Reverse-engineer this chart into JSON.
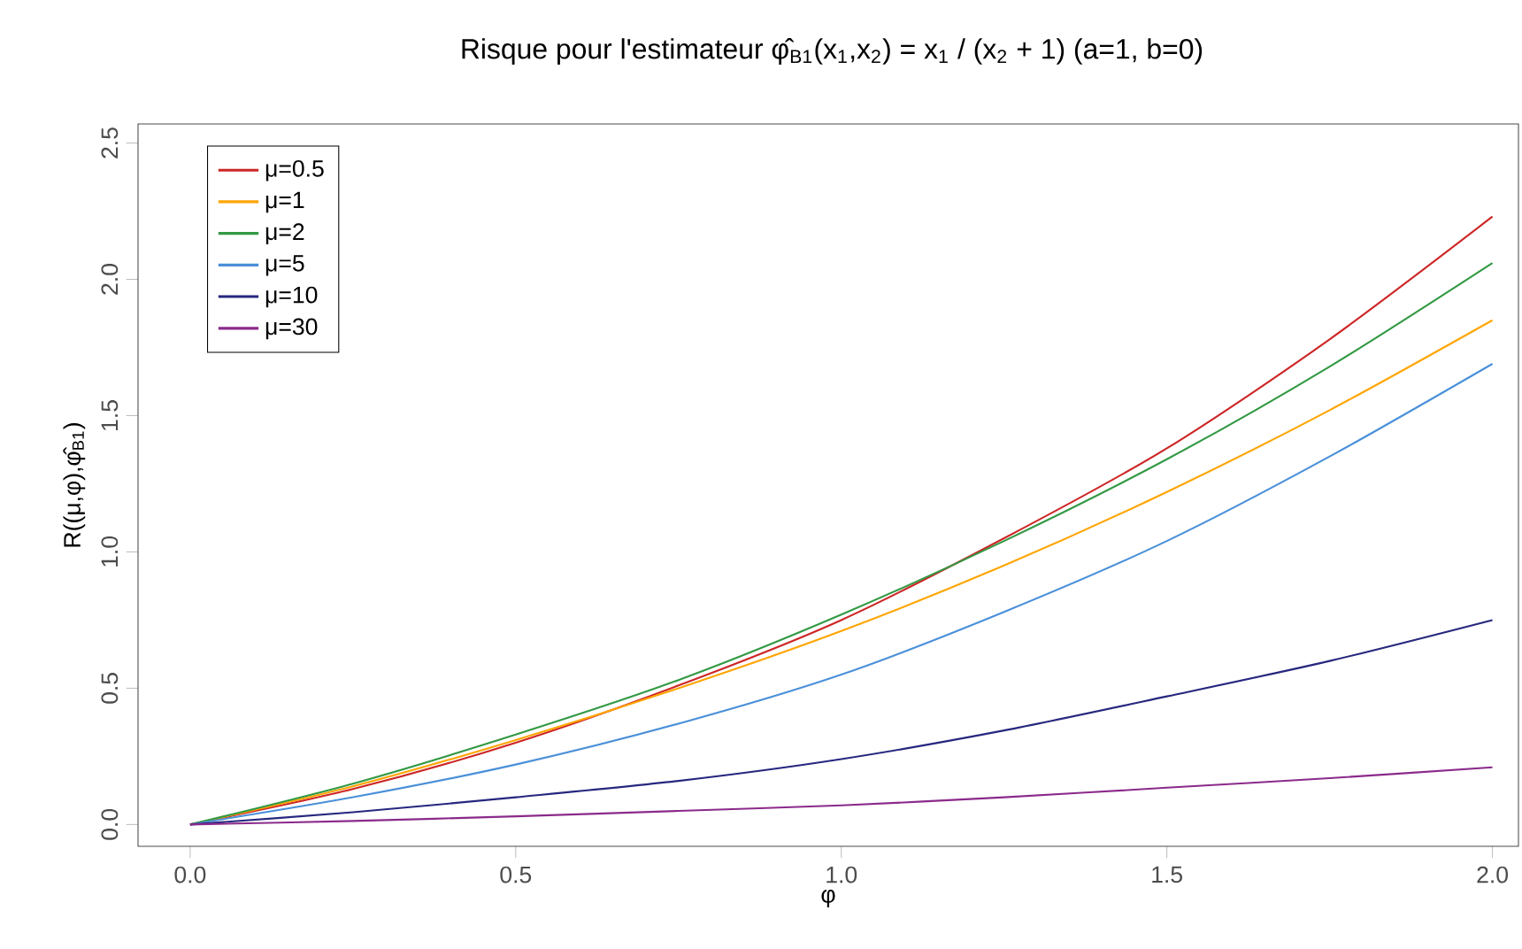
{
  "chart_data": {
    "type": "line",
    "title": "Risque pour l'estimateur φ̂$_{B1}$(x$_{1}$,x$_{2}$) = x$_{1}$ / (x$_{2}$ + 1)  (a=1, b=0)",
    "xlabel": "φ",
    "ylabel": "R((μ,φ),φ̂$_{B1}$)",
    "x": [
      0,
      0.25,
      0.5,
      0.75,
      1.0,
      1.25,
      1.5,
      1.75,
      2.0
    ],
    "series": [
      {
        "name": "μ=0.5",
        "color": "#cd2626",
        "values": [
          0,
          0.13,
          0.3,
          0.51,
          0.75,
          1.05,
          1.38,
          1.78,
          2.23
        ]
      },
      {
        "name": "μ=1",
        "color": "#ffa500",
        "values": [
          0,
          0.14,
          0.31,
          0.5,
          0.71,
          0.95,
          1.22,
          1.52,
          1.85
        ]
      },
      {
        "name": "μ=2",
        "color": "#339944",
        "values": [
          0,
          0.15,
          0.33,
          0.53,
          0.77,
          1.04,
          1.34,
          1.68,
          2.06
        ]
      },
      {
        "name": "μ=5",
        "color": "#4a90d9",
        "values": [
          0,
          0.1,
          0.22,
          0.37,
          0.55,
          0.78,
          1.04,
          1.35,
          1.69
        ]
      },
      {
        "name": "μ=10",
        "color": "#27277f",
        "values": [
          0,
          0.045,
          0.1,
          0.16,
          0.24,
          0.345,
          0.47,
          0.6,
          0.75
        ]
      },
      {
        "name": "μ=30",
        "color": "#8b2a8b",
        "values": [
          0,
          0.013,
          0.03,
          0.05,
          0.07,
          0.1,
          0.135,
          0.17,
          0.21
        ]
      }
    ],
    "xlim": [
      -0.08,
      2.04
    ],
    "ylim": [
      -0.08,
      2.57
    ],
    "xticks": [
      {
        "value": 0,
        "label": "0.0"
      },
      {
        "value": 0.5,
        "label": "0.5"
      },
      {
        "value": 1.0,
        "label": "1.0"
      },
      {
        "value": 1.5,
        "label": "1.5"
      },
      {
        "value": 2.0,
        "label": "2.0"
      }
    ],
    "yticks": [
      {
        "value": 0,
        "label": "0.0"
      },
      {
        "value": 0.5,
        "label": "0.5"
      },
      {
        "value": 1.0,
        "label": "1.0"
      },
      {
        "value": 1.5,
        "label": "1.5"
      },
      {
        "value": 2.0,
        "label": "2.0"
      },
      {
        "value": 2.5,
        "label": "2.5"
      }
    ],
    "legend": "top left",
    "grid": false,
    "marker": "none",
    "line_style": "solid"
  }
}
